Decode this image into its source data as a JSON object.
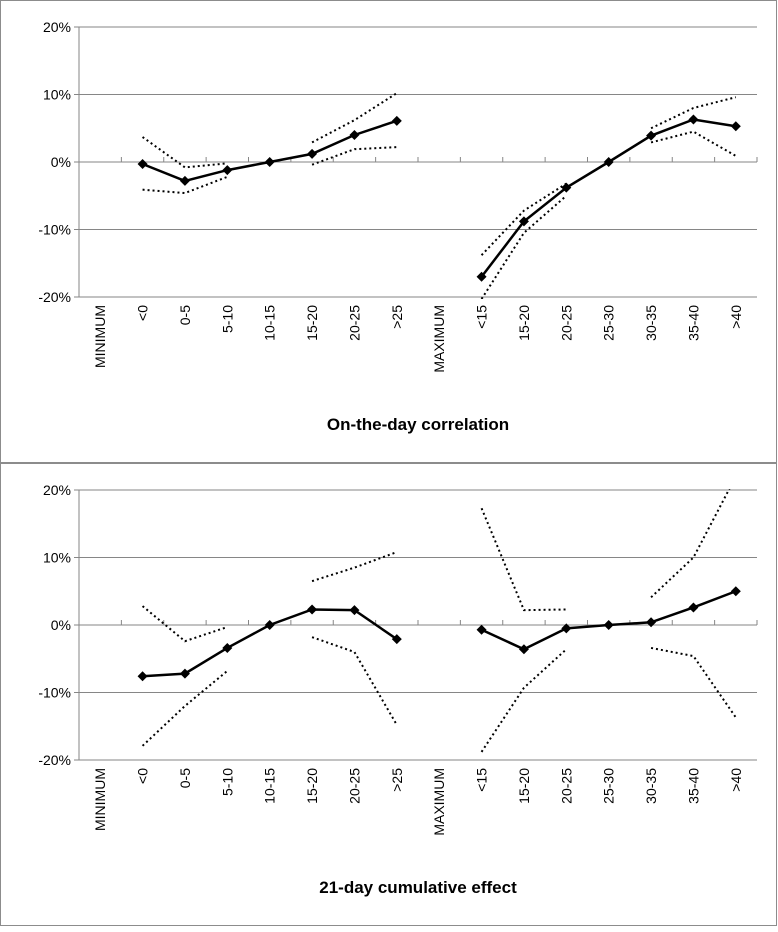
{
  "chart_data": [
    {
      "type": "line",
      "xlabel": "On-the-day correlation",
      "categories": [
        "MINIMUM",
        "<0",
        "0-5",
        "5-10",
        "10-15",
        "15-20",
        "20-25",
        ">25",
        "MAXIMUM",
        "<15",
        "15-20",
        "20-25",
        "25-30",
        "30-35",
        "35-40",
        ">40"
      ],
      "ylim": [
        -20,
        20
      ],
      "yticks": [
        {
          "value": -20,
          "label": "-20%"
        },
        {
          "value": -10,
          "label": "-10%"
        },
        {
          "value": 0,
          "label": "0%"
        },
        {
          "value": 10,
          "label": "10%"
        },
        {
          "value": 20,
          "label": "20%"
        }
      ],
      "grid": true,
      "series": [
        {
          "color": "#000000",
          "style": "solid",
          "marker": "diamond",
          "values": [
            null,
            -0.3,
            -2.8,
            -1.2,
            0,
            1.2,
            4.0,
            6.1,
            null,
            -17.0,
            -8.8,
            -3.8,
            0,
            3.9,
            6.3,
            5.3
          ]
        },
        {
          "color": "#000000",
          "style": "dotted",
          "values": [
            null,
            3.7,
            -0.8,
            -0.2,
            null,
            2.9,
            6.2,
            10.2,
            null,
            -13.8,
            -7.2,
            -3.2,
            null,
            5.0,
            8.0,
            9.6
          ]
        },
        {
          "color": "#000000",
          "style": "dotted",
          "values": [
            null,
            -4.1,
            -4.6,
            -2.2,
            null,
            -0.4,
            1.9,
            2.2,
            null,
            -20.3,
            -10.5,
            -5.0,
            null,
            2.9,
            4.5,
            0.9
          ]
        }
      ]
    },
    {
      "type": "line",
      "xlabel": "21-day cumulative effect",
      "categories": [
        "MINIMUM",
        "<0",
        "0-5",
        "5-10",
        "10-15",
        "15-20",
        "20-25",
        ">25",
        "MAXIMUM",
        "<15",
        "15-20",
        "20-25",
        "25-30",
        "30-35",
        "35-40",
        ">40"
      ],
      "ylim": [
        -20,
        20
      ],
      "yticks": [
        {
          "value": -20,
          "label": "-20%"
        },
        {
          "value": -10,
          "label": "-10%"
        },
        {
          "value": 0,
          "label": "0%"
        },
        {
          "value": 10,
          "label": "10%"
        },
        {
          "value": 20,
          "label": "20%"
        }
      ],
      "grid": true,
      "series": [
        {
          "color": "#000000",
          "style": "solid",
          "marker": "diamond",
          "values": [
            null,
            -7.6,
            -7.2,
            -3.4,
            0,
            2.3,
            2.2,
            -2.1,
            null,
            -0.7,
            -3.6,
            -0.5,
            0,
            0.4,
            2.6,
            5.0
          ]
        },
        {
          "color": "#000000",
          "style": "dotted",
          "values": [
            null,
            2.8,
            -2.4,
            -0.3,
            null,
            6.5,
            8.5,
            10.8,
            null,
            17.3,
            2.2,
            2.3,
            null,
            4.1,
            10.0,
            22.0
          ]
        },
        {
          "color": "#000000",
          "style": "dotted",
          "values": [
            null,
            -17.9,
            -12.0,
            -6.8,
            null,
            -1.8,
            -4.0,
            -14.8,
            null,
            -18.8,
            -9.3,
            -3.6,
            null,
            -3.4,
            -4.6,
            -13.7
          ]
        }
      ]
    }
  ]
}
